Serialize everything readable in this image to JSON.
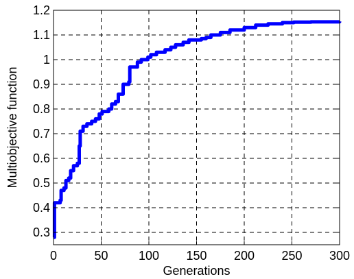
{
  "chart_data": {
    "type": "line",
    "title": "",
    "xlabel": "Generations",
    "ylabel": "Multiobjective function",
    "xlim": [
      0,
      300
    ],
    "ylim": [
      0.25,
      1.2
    ],
    "xticks": [
      0,
      50,
      100,
      150,
      200,
      250,
      300
    ],
    "yticks": [
      0.3,
      0.4,
      0.5,
      0.6,
      0.7,
      0.8,
      0.9,
      1,
      1.1,
      1.2
    ],
    "xtick_labels": [
      "0",
      "50",
      "100",
      "150",
      "200",
      "250",
      "300"
    ],
    "ytick_labels": [
      "0.3",
      "0.4",
      "0.5",
      "0.6",
      "0.7",
      "0.8",
      "0.9",
      "1",
      "1.1",
      "1.2"
    ],
    "grid": true,
    "grid_style": "dashed",
    "series": [
      {
        "color": "#0000ff",
        "points": [
          [
            0,
            0.28
          ],
          [
            1,
            0.42
          ],
          [
            6,
            0.42
          ],
          [
            7,
            0.43
          ],
          [
            8,
            0.47
          ],
          [
            11,
            0.48
          ],
          [
            13,
            0.51
          ],
          [
            16,
            0.52
          ],
          [
            18,
            0.55
          ],
          [
            21,
            0.57
          ],
          [
            25,
            0.58
          ],
          [
            27,
            0.65
          ],
          [
            28,
            0.71
          ],
          [
            31,
            0.73
          ],
          [
            35,
            0.74
          ],
          [
            40,
            0.75
          ],
          [
            44,
            0.76
          ],
          [
            48,
            0.78
          ],
          [
            51,
            0.79
          ],
          [
            58,
            0.8
          ],
          [
            61,
            0.82
          ],
          [
            65,
            0.83
          ],
          [
            68,
            0.86
          ],
          [
            72,
            0.86
          ],
          [
            73,
            0.9
          ],
          [
            79,
            0.91
          ],
          [
            80,
            0.97
          ],
          [
            86,
            0.97
          ],
          [
            88,
            0.99
          ],
          [
            92,
            1.0
          ],
          [
            99,
            1.01
          ],
          [
            102,
            1.02
          ],
          [
            108,
            1.03
          ],
          [
            117,
            1.04
          ],
          [
            123,
            1.05
          ],
          [
            128,
            1.06
          ],
          [
            136,
            1.07
          ],
          [
            142,
            1.08
          ],
          [
            155,
            1.085
          ],
          [
            160,
            1.09
          ],
          [
            165,
            1.1
          ],
          [
            175,
            1.11
          ],
          [
            185,
            1.12
          ],
          [
            200,
            1.13
          ],
          [
            212,
            1.14
          ],
          [
            225,
            1.145
          ],
          [
            240,
            1.15
          ],
          [
            252,
            1.152
          ],
          [
            270,
            1.153
          ],
          [
            300,
            1.155
          ]
        ]
      }
    ]
  }
}
